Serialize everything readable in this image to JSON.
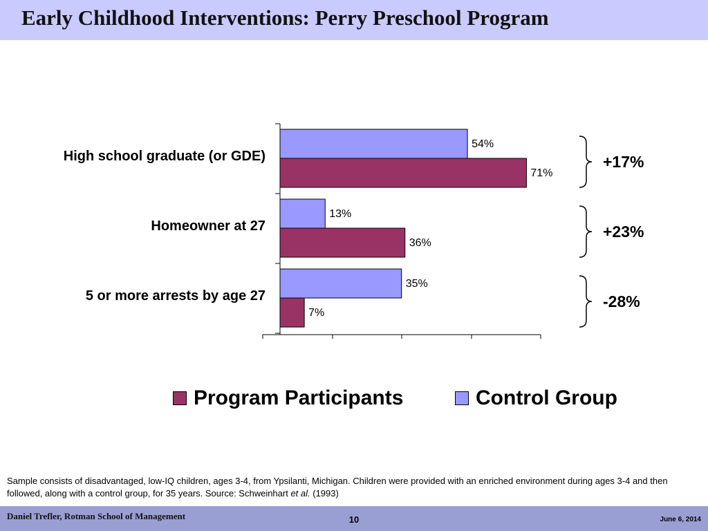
{
  "slide": {
    "title": "Early Childhood Interventions: Perry Preschool Program"
  },
  "chart_data": {
    "type": "bar",
    "orientation": "horizontal",
    "categories": [
      "High school graduate (or GDE)",
      "Homeowner at 27",
      "5 or more arrests by age 27"
    ],
    "series": [
      {
        "name": "Program Participants",
        "values": [
          71,
          36,
          7
        ],
        "labels": [
          "71%",
          "36%",
          "7%"
        ],
        "color": "#993366"
      },
      {
        "name": "Control Group",
        "values": [
          54,
          13,
          35
        ],
        "labels": [
          "54%",
          "13%",
          "35%"
        ],
        "color": "#9999ff"
      }
    ],
    "differences": [
      "+17%",
      "+23%",
      "-28%"
    ],
    "xlim": [
      0,
      75
    ],
    "x_tick_labels_shown": false,
    "grid": false,
    "legend_position": "bottom"
  },
  "note": {
    "text_before": "Sample consists of disadvantaged, low-IQ children, ages 3-4, from Ypsilanti, Michigan. Children were provided with an enriched environment during ages 3-4 and then followed, along with a control group, for 35 years.  Source: Schweinhart ",
    "italic": "et al.",
    "text_after": " (1993)"
  },
  "footer": {
    "left": "Daniel Trefler, Rotman School of Management",
    "page": "10",
    "date": "June 6, 2014"
  }
}
